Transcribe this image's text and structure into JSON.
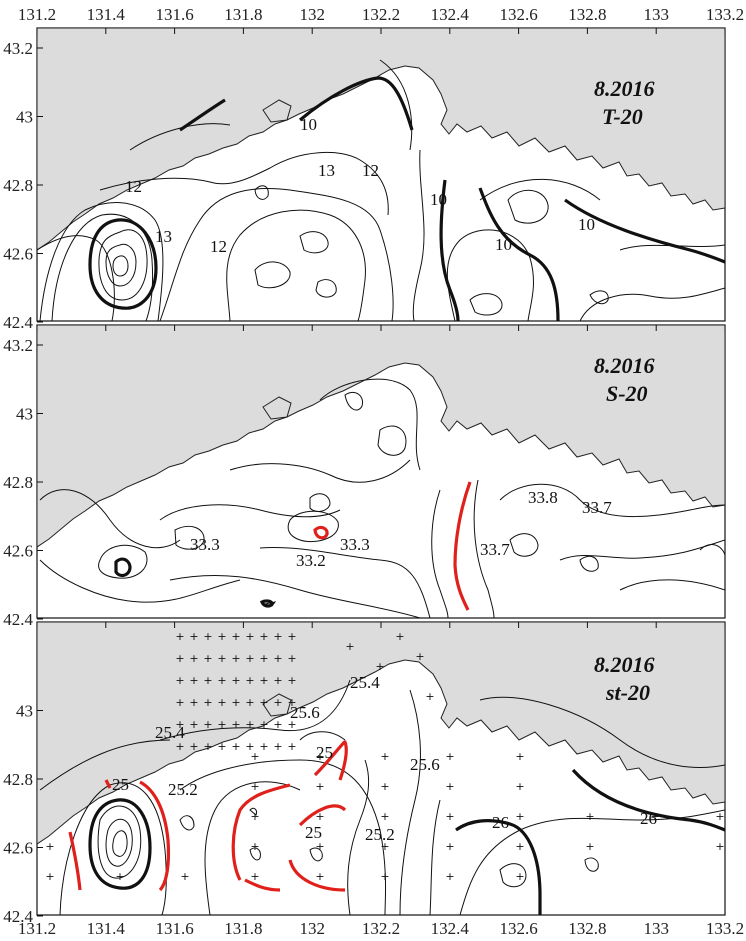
{
  "x_axis": {
    "ticks": [
      "131.2",
      "131.4",
      "131.6",
      "131.8",
      "132",
      "132.2",
      "132.4",
      "132.6",
      "132.8",
      "133",
      "133.2"
    ]
  },
  "y_axis": {
    "ticks": [
      "43.2",
      "43",
      "42.8",
      "42.6",
      "42.4"
    ]
  },
  "panels": [
    {
      "id": "T",
      "title_date": "8.2016",
      "title_var": "T-20",
      "contour_labels": [
        "12",
        "13",
        "12",
        "10",
        "13",
        "12",
        "10",
        "10",
        "10"
      ]
    },
    {
      "id": "S",
      "title_date": "8.2016",
      "title_var": "S-20",
      "contour_labels": [
        "33.3",
        "33.2",
        "33.3",
        "33.7",
        "33.8",
        "33.7"
      ]
    },
    {
      "id": "st",
      "title_date": "8.2016",
      "title_var": "st-20",
      "contour_labels": [
        "25.4",
        "25.6",
        "25.4",
        "25",
        "25.2",
        "25",
        "25",
        "25.2",
        "25.6",
        "26",
        "26"
      ]
    }
  ],
  "colors": {
    "land": "#dcdcdc",
    "highlight_contour": "#e0201a",
    "contour": "#111111"
  }
}
